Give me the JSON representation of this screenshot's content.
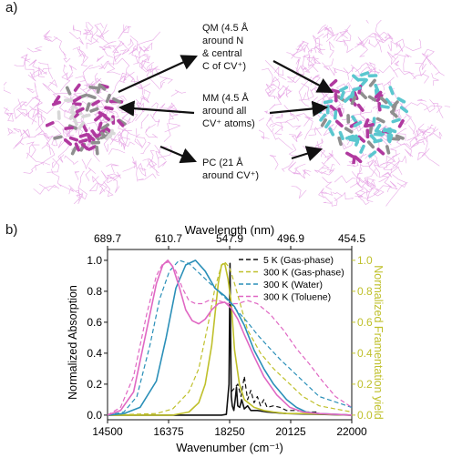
{
  "panel_a": {
    "label": "a)",
    "regions": [
      {
        "id": "qm",
        "text": "QM (4.5 Å\naround N\n& central\nC of CV⁺)"
      },
      {
        "id": "mm",
        "text": "MM (4.5 Å\naround all\nCV⁺ atoms)"
      },
      {
        "id": "pc",
        "text": "PC (21 Å\naround CV⁺)"
      }
    ],
    "colors": {
      "solvent": "#e7a8e6",
      "cv_magenta": "#b0399f",
      "cv_gray": "#8f8f8f",
      "cv_cyan": "#5bc7cf",
      "arrow": "#111111"
    }
  },
  "panel_b": {
    "label": "b)"
  },
  "chart_data": {
    "type": "line",
    "xlabel": "Wavenumber (cm⁻¹)",
    "x2label": "Wavelength (nm)",
    "ylabel": "Normalized Absorption",
    "y2label": "Normalized Framentation yield",
    "xlim": [
      14500,
      22000
    ],
    "ylim": [
      -0.03,
      1.07
    ],
    "x_ticks": [
      14500,
      16375,
      18250,
      20125,
      22000
    ],
    "x_tick_labels": [
      "14500",
      "16375",
      "18250",
      "20125",
      "22000"
    ],
    "x2_tick_labels": [
      "689.7",
      "610.7",
      "547.9",
      "496.9",
      "454.5"
    ],
    "y_ticks": [
      0.0,
      0.2,
      0.4,
      0.6,
      0.8,
      1.0
    ],
    "y_tick_labels": [
      "0.0",
      "0.2",
      "0.4",
      "0.6",
      "0.8",
      "1.0"
    ],
    "y2_tick_labels": [
      "0.0",
      "0.2",
      "0.4",
      "0.6",
      "0.8",
      "1.0"
    ],
    "y2_color": "#bfc02b",
    "legend": {
      "placement": "top-right",
      "entries": [
        {
          "name": "5 K (Gas-phase)",
          "color": "#111111"
        },
        {
          "name": "300 K (Gas-phase)",
          "color": "#bfc02b"
        },
        {
          "name": "300 K (Water)",
          "color": "#2a8fb8"
        },
        {
          "name": "300 K (Toluene)",
          "color": "#e067c3"
        }
      ]
    },
    "series": [
      {
        "name": "5 K (Gas-phase)",
        "color": "#111111",
        "style": "solid",
        "x": [
          14500,
          18000,
          18150,
          18230,
          18260,
          18280,
          18300,
          18330,
          18380,
          18420,
          18460,
          18500,
          18560,
          18620,
          18700,
          18800,
          18900,
          19100,
          19400,
          20000,
          22000
        ],
        "y": [
          0,
          0,
          0.005,
          0.2,
          0.98,
          0.5,
          0.12,
          0.06,
          0.03,
          0.1,
          0.18,
          0.06,
          0.05,
          0.1,
          0.04,
          0.06,
          0.03,
          0.03,
          0.02,
          0.01,
          0
        ]
      },
      {
        "name": "5 K (Gas-phase)",
        "color": "#111111",
        "style": "dash",
        "x": [
          18300,
          18500,
          18600,
          18700,
          18800,
          18900,
          19000,
          19100,
          19200,
          19300,
          19400,
          19600,
          19800,
          20000,
          20300,
          20600,
          21000
        ],
        "y": [
          0.15,
          0.2,
          0.12,
          0.25,
          0.1,
          0.16,
          0.08,
          0.12,
          0.06,
          0.1,
          0.05,
          0.06,
          0.05,
          0.03,
          0.03,
          0.02,
          0.02
        ]
      },
      {
        "name": "300 K (Gas-phase)",
        "color": "#bfc02b",
        "style": "solid",
        "x": [
          14500,
          16500,
          17000,
          17300,
          17500,
          17700,
          17800,
          17900,
          18000,
          18100,
          18200,
          18300,
          18400,
          18550,
          18700,
          19000,
          19300,
          19600,
          20000,
          20500,
          22000
        ],
        "y": [
          0,
          0,
          0.02,
          0.08,
          0.2,
          0.45,
          0.65,
          0.85,
          0.97,
          0.98,
          0.88,
          0.72,
          0.42,
          0.2,
          0.1,
          0.05,
          0.03,
          0.02,
          0.01,
          0.01,
          0
        ]
      },
      {
        "name": "300 K (Gas-phase)",
        "color": "#bfc02b",
        "style": "dash",
        "x": [
          14500,
          16000,
          16500,
          17000,
          17300,
          17600,
          17800,
          18000,
          18100,
          18250,
          18400,
          18600,
          18800,
          19200,
          19600,
          20000,
          20500,
          21000,
          22000
        ],
        "y": [
          0,
          0.01,
          0.04,
          0.15,
          0.3,
          0.6,
          0.82,
          0.97,
          0.99,
          0.95,
          0.85,
          0.7,
          0.55,
          0.4,
          0.3,
          0.22,
          0.12,
          0.06,
          0.02
        ]
      },
      {
        "name": "300 K (Water)",
        "color": "#2a8fb8",
        "style": "solid",
        "x": [
          14500,
          15000,
          15500,
          16000,
          16300,
          16600,
          16900,
          17200,
          17500,
          17800,
          18100,
          18400,
          18700,
          19000,
          19300,
          19600,
          20000,
          20300,
          20600,
          21000,
          22000
        ],
        "y": [
          0,
          0.01,
          0.05,
          0.22,
          0.5,
          0.82,
          0.97,
          1.0,
          0.93,
          0.82,
          0.77,
          0.7,
          0.58,
          0.42,
          0.3,
          0.2,
          0.1,
          0.05,
          0.02,
          0.01,
          0
        ]
      },
      {
        "name": "300 K (Water)",
        "color": "#2a8fb8",
        "style": "dash",
        "x": [
          14500,
          15000,
          15400,
          15800,
          16100,
          16400,
          16700,
          17000,
          17300,
          17600,
          17900,
          18200,
          18500,
          18800,
          19100,
          19400,
          19800,
          20200,
          20600,
          21000,
          22000
        ],
        "y": [
          0,
          0.02,
          0.12,
          0.45,
          0.75,
          0.93,
          1.0,
          0.98,
          0.92,
          0.86,
          0.8,
          0.74,
          0.67,
          0.6,
          0.52,
          0.45,
          0.36,
          0.28,
          0.2,
          0.12,
          0.05
        ]
      },
      {
        "name": "300 K (Toluene)",
        "color": "#e067c3",
        "style": "solid",
        "x": [
          14500,
          14900,
          15300,
          15700,
          16000,
          16200,
          16350,
          16500,
          16700,
          16900,
          17100,
          17300,
          17500,
          17700,
          17900,
          18100,
          18300,
          18500,
          18700,
          19000,
          19300,
          19700,
          20100,
          20500,
          21000,
          22000
        ],
        "y": [
          0,
          0.03,
          0.15,
          0.55,
          0.85,
          0.97,
          1.0,
          0.96,
          0.83,
          0.68,
          0.61,
          0.59,
          0.62,
          0.68,
          0.72,
          0.73,
          0.69,
          0.62,
          0.52,
          0.38,
          0.25,
          0.13,
          0.05,
          0.02,
          0.01,
          0
        ]
      },
      {
        "name": "300 K (Toluene)",
        "color": "#e067c3",
        "style": "dash",
        "x": [
          14500,
          14900,
          15300,
          15700,
          16000,
          16200,
          16400,
          16600,
          16800,
          17000,
          17200,
          17400,
          17600,
          17900,
          18200,
          18500,
          18800,
          19100,
          19500,
          19900,
          20300,
          20700,
          21100,
          21500,
          22000
        ],
        "y": [
          0,
          0.05,
          0.25,
          0.65,
          0.9,
          0.98,
          0.99,
          0.93,
          0.82,
          0.74,
          0.72,
          0.72,
          0.74,
          0.74,
          0.72,
          0.72,
          0.74,
          0.72,
          0.65,
          0.55,
          0.43,
          0.33,
          0.22,
          0.12,
          0.05
        ]
      }
    ]
  }
}
